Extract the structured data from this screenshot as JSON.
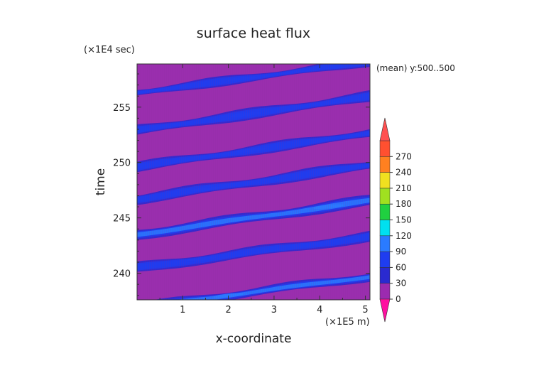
{
  "chart_data": {
    "type": "heatmap",
    "title": "surface heat flux",
    "xlabel": "x-coordinate",
    "ylabel": "time",
    "x_unit": "(×1E5 m)",
    "y_unit": "(×1E4 sec)",
    "annotation": "(mean) y:500..500",
    "xlim": [
      0,
      5.1
    ],
    "ylim": [
      237.6,
      258.9
    ],
    "x_ticks": [
      "1",
      "2",
      "3",
      "4",
      "5"
    ],
    "y_ticks": [
      "240",
      "245",
      "250",
      "255"
    ],
    "background_value": 10,
    "bands": [
      {
        "t_at_x0": 236.9,
        "slope": 0.55,
        "width": 0.75,
        "peak": 95,
        "hot_x": 2.0
      },
      {
        "t_at_x0": 240.5,
        "slope": 0.55,
        "width": 0.85,
        "peak": 75,
        "hot_x": 1.4
      },
      {
        "t_at_x0": 243.5,
        "slope": 0.6,
        "width": 0.9,
        "peak": 115,
        "hot_x": 4.2
      },
      {
        "t_at_x0": 246.7,
        "slope": 0.6,
        "width": 0.85,
        "peak": 85,
        "hot_x": 1.5
      },
      {
        "t_at_x0": 249.6,
        "slope": 0.6,
        "width": 0.8,
        "peak": 70,
        "hot_x": 2.5
      },
      {
        "t_at_x0": 252.9,
        "slope": 0.6,
        "width": 0.85,
        "peak": 75,
        "hot_x": 2.4
      },
      {
        "t_at_x0": 256.3,
        "slope": 0.55,
        "width": 0.7,
        "peak": 65,
        "hot_x": 2.3
      }
    ],
    "colorbar": {
      "levels": [
        0,
        30,
        60,
        90,
        120,
        150,
        180,
        210,
        240,
        270
      ],
      "labels": [
        "0",
        "30",
        "60",
        "90",
        "120",
        "150",
        "180",
        "210",
        "240",
        "270"
      ],
      "colors": [
        "#9c2bb0",
        "#2a2ad0",
        "#1f3df0",
        "#2a7bff",
        "#00e0f0",
        "#20d040",
        "#a0e020",
        "#f0e020",
        "#ff8020",
        "#ff5030"
      ],
      "under_color": "#ff10a0",
      "over_color": "#ff5050"
    },
    "grid": false
  }
}
